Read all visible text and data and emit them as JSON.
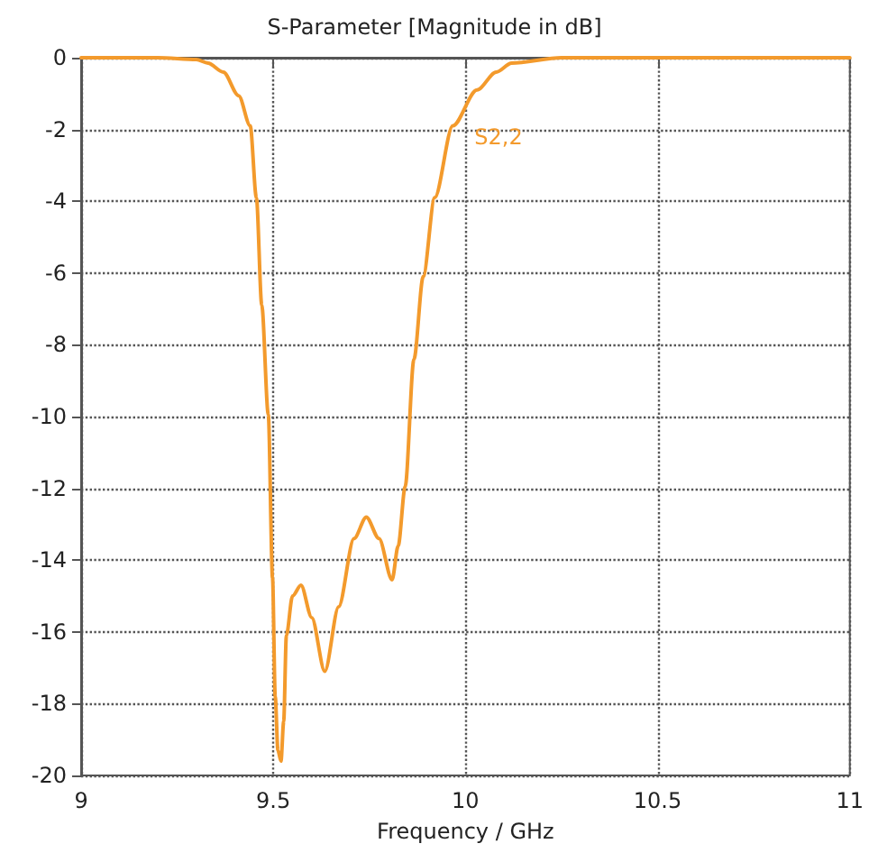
{
  "chart_data": {
    "type": "line",
    "title": "S-Parameter [Magnitude in dB]",
    "xlabel": "Frequency / GHz",
    "xlim": [
      9,
      11
    ],
    "xticks": [
      9,
      9.5,
      10,
      10.5,
      11
    ],
    "ylim": [
      -20,
      0
    ],
    "yticks": [
      0,
      -2,
      -4,
      -6,
      -8,
      -10,
      -12,
      -14,
      -16,
      -18,
      -20
    ],
    "grid": true,
    "marker": "none",
    "line_style": "solid",
    "series": [
      {
        "name": "S2,2",
        "color": "#f39a2c",
        "x": [
          9,
          9.2,
          9.3,
          9.33,
          9.37,
          9.41,
          9.44,
          9.456,
          9.47,
          9.487,
          9.498,
          9.505,
          9.512,
          9.52,
          9.527,
          9.534,
          9.55,
          9.572,
          9.6,
          9.634,
          9.67,
          9.71,
          9.742,
          9.775,
          9.809,
          9.825,
          9.843,
          9.866,
          9.89,
          9.92,
          9.967,
          10.03,
          10.08,
          10.12,
          10.25,
          10.5,
          11
        ],
        "values": [
          0,
          0,
          -0.05,
          -0.15,
          -0.4,
          -1.06,
          -1.9,
          -3.9,
          -6.9,
          -9.95,
          -14.5,
          -17.8,
          -19.3,
          -19.6,
          -18.5,
          -16.1,
          -15,
          -14.7,
          -15.6,
          -17.1,
          -15.3,
          -13.4,
          -12.8,
          -13.4,
          -14.55,
          -13.6,
          -11.96,
          -8.4,
          -6.1,
          -3.9,
          -1.9,
          -0.9,
          -0.4,
          -0.15,
          0,
          0,
          0
        ]
      }
    ]
  }
}
